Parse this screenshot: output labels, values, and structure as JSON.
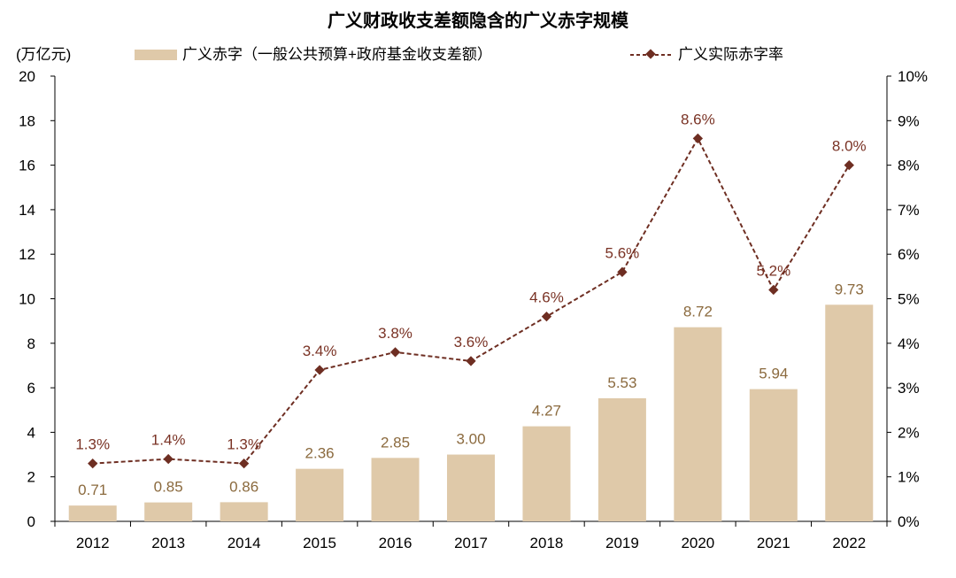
{
  "chart_data": {
    "type": "bar+line",
    "title": "广义财政收支差额隐含的广义赤字规模",
    "ylabel": "(万亿元)",
    "categories": [
      "2012",
      "2013",
      "2014",
      "2015",
      "2016",
      "2017",
      "2018",
      "2019",
      "2020",
      "2021",
      "2022"
    ],
    "series": [
      {
        "name": "广义赤字（一般公共预算+政府基金收支差额）",
        "type": "bar",
        "axis": "left",
        "values": [
          0.71,
          0.85,
          0.86,
          2.36,
          2.85,
          3.0,
          4.27,
          5.53,
          8.72,
          5.94,
          9.73
        ],
        "labels": [
          "0.71",
          "0.85",
          "0.86",
          "2.36",
          "2.85",
          "3.00",
          "4.27",
          "5.53",
          "8.72",
          "5.94",
          "9.73"
        ],
        "color": "#DFC9A9"
      },
      {
        "name": "广义实际赤字率",
        "type": "line",
        "axis": "right",
        "values": [
          1.3,
          1.4,
          1.3,
          3.4,
          3.8,
          3.6,
          4.6,
          5.6,
          8.6,
          5.2,
          8.0
        ],
        "labels": [
          "1.3%",
          "1.4%",
          "1.3%",
          "3.4%",
          "3.8%",
          "3.6%",
          "4.6%",
          "5.6%",
          "8.6%",
          "5.2%",
          "8.0%"
        ],
        "color": "#6E2E22"
      }
    ],
    "ylim": [
      0,
      20
    ],
    "y2lim": [
      0,
      10
    ],
    "yticks": [
      "0",
      "2",
      "4",
      "6",
      "8",
      "10",
      "12",
      "14",
      "16",
      "18",
      "20"
    ],
    "y2ticks": [
      "0%",
      "1%",
      "2%",
      "3%",
      "4%",
      "5%",
      "6%",
      "7%",
      "8%",
      "9%",
      "10%"
    ],
    "legend": "top",
    "grid": false,
    "bar_label_color": "#8B6A3E",
    "line_label_color": "#7A3325"
  }
}
